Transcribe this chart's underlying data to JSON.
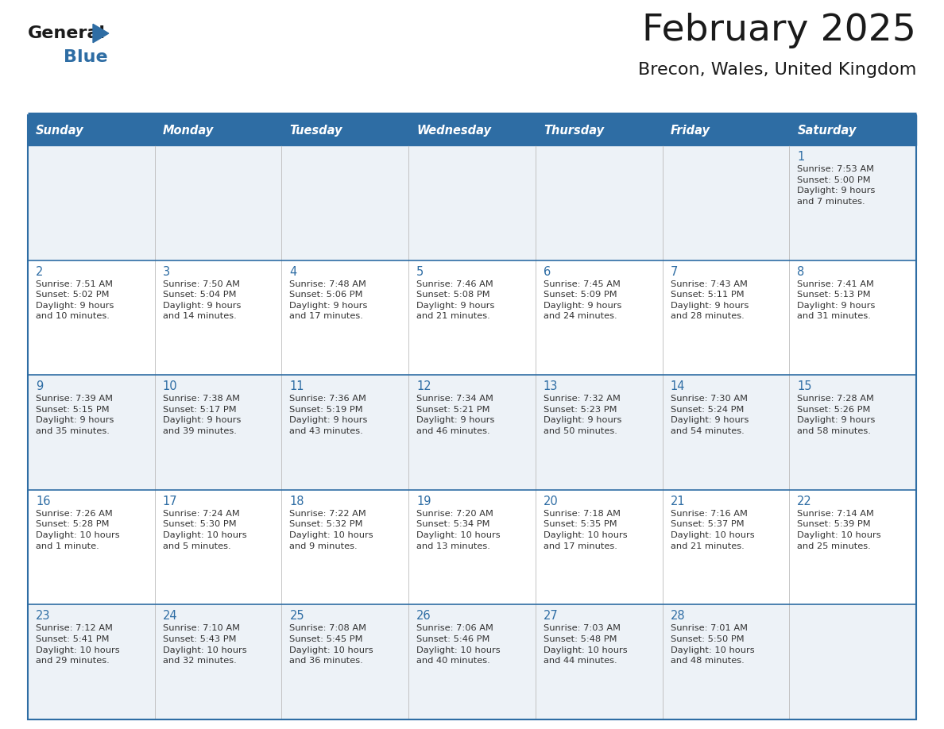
{
  "title": "February 2025",
  "subtitle": "Brecon, Wales, United Kingdom",
  "header_bg_color": "#2E6DA4",
  "header_text_color": "#FFFFFF",
  "row_odd_bg_color": "#EDF2F7",
  "row_even_bg_color": "#FFFFFF",
  "day_number_color": "#2E6DA4",
  "cell_text_color": "#333333",
  "title_color": "#1a1a1a",
  "subtitle_color": "#1a1a1a",
  "grid_line_color": "#2E6DA4",
  "days_of_week": [
    "Sunday",
    "Monday",
    "Tuesday",
    "Wednesday",
    "Thursday",
    "Friday",
    "Saturday"
  ],
  "calendar_data": [
    [
      null,
      null,
      null,
      null,
      null,
      null,
      {
        "day": "1",
        "sunrise": "7:53 AM",
        "sunset": "5:00 PM",
        "daylight": "9 hours\nand 7 minutes."
      }
    ],
    [
      {
        "day": "2",
        "sunrise": "7:51 AM",
        "sunset": "5:02 PM",
        "daylight": "9 hours\nand 10 minutes."
      },
      {
        "day": "3",
        "sunrise": "7:50 AM",
        "sunset": "5:04 PM",
        "daylight": "9 hours\nand 14 minutes."
      },
      {
        "day": "4",
        "sunrise": "7:48 AM",
        "sunset": "5:06 PM",
        "daylight": "9 hours\nand 17 minutes."
      },
      {
        "day": "5",
        "sunrise": "7:46 AM",
        "sunset": "5:08 PM",
        "daylight": "9 hours\nand 21 minutes."
      },
      {
        "day": "6",
        "sunrise": "7:45 AM",
        "sunset": "5:09 PM",
        "daylight": "9 hours\nand 24 minutes."
      },
      {
        "day": "7",
        "sunrise": "7:43 AM",
        "sunset": "5:11 PM",
        "daylight": "9 hours\nand 28 minutes."
      },
      {
        "day": "8",
        "sunrise": "7:41 AM",
        "sunset": "5:13 PM",
        "daylight": "9 hours\nand 31 minutes."
      }
    ],
    [
      {
        "day": "9",
        "sunrise": "7:39 AM",
        "sunset": "5:15 PM",
        "daylight": "9 hours\nand 35 minutes."
      },
      {
        "day": "10",
        "sunrise": "7:38 AM",
        "sunset": "5:17 PM",
        "daylight": "9 hours\nand 39 minutes."
      },
      {
        "day": "11",
        "sunrise": "7:36 AM",
        "sunset": "5:19 PM",
        "daylight": "9 hours\nand 43 minutes."
      },
      {
        "day": "12",
        "sunrise": "7:34 AM",
        "sunset": "5:21 PM",
        "daylight": "9 hours\nand 46 minutes."
      },
      {
        "day": "13",
        "sunrise": "7:32 AM",
        "sunset": "5:23 PM",
        "daylight": "9 hours\nand 50 minutes."
      },
      {
        "day": "14",
        "sunrise": "7:30 AM",
        "sunset": "5:24 PM",
        "daylight": "9 hours\nand 54 minutes."
      },
      {
        "day": "15",
        "sunrise": "7:28 AM",
        "sunset": "5:26 PM",
        "daylight": "9 hours\nand 58 minutes."
      }
    ],
    [
      {
        "day": "16",
        "sunrise": "7:26 AM",
        "sunset": "5:28 PM",
        "daylight": "10 hours\nand 1 minute."
      },
      {
        "day": "17",
        "sunrise": "7:24 AM",
        "sunset": "5:30 PM",
        "daylight": "10 hours\nand 5 minutes."
      },
      {
        "day": "18",
        "sunrise": "7:22 AM",
        "sunset": "5:32 PM",
        "daylight": "10 hours\nand 9 minutes."
      },
      {
        "day": "19",
        "sunrise": "7:20 AM",
        "sunset": "5:34 PM",
        "daylight": "10 hours\nand 13 minutes."
      },
      {
        "day": "20",
        "sunrise": "7:18 AM",
        "sunset": "5:35 PM",
        "daylight": "10 hours\nand 17 minutes."
      },
      {
        "day": "21",
        "sunrise": "7:16 AM",
        "sunset": "5:37 PM",
        "daylight": "10 hours\nand 21 minutes."
      },
      {
        "day": "22",
        "sunrise": "7:14 AM",
        "sunset": "5:39 PM",
        "daylight": "10 hours\nand 25 minutes."
      }
    ],
    [
      {
        "day": "23",
        "sunrise": "7:12 AM",
        "sunset": "5:41 PM",
        "daylight": "10 hours\nand 29 minutes."
      },
      {
        "day": "24",
        "sunrise": "7:10 AM",
        "sunset": "5:43 PM",
        "daylight": "10 hours\nand 32 minutes."
      },
      {
        "day": "25",
        "sunrise": "7:08 AM",
        "sunset": "5:45 PM",
        "daylight": "10 hours\nand 36 minutes."
      },
      {
        "day": "26",
        "sunrise": "7:06 AM",
        "sunset": "5:46 PM",
        "daylight": "10 hours\nand 40 minutes."
      },
      {
        "day": "27",
        "sunrise": "7:03 AM",
        "sunset": "5:48 PM",
        "daylight": "10 hours\nand 44 minutes."
      },
      {
        "day": "28",
        "sunrise": "7:01 AM",
        "sunset": "5:50 PM",
        "daylight": "10 hours\nand 48 minutes."
      },
      null
    ]
  ],
  "fig_width": 11.88,
  "fig_height": 9.18
}
